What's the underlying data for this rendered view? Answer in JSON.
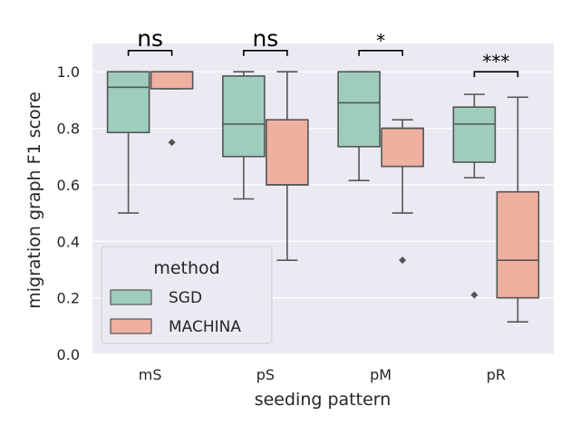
{
  "chart_data": {
    "type": "box",
    "xlabel": "seeding pattern",
    "ylabel": "migration graph F1 score",
    "ylim": [
      0.0,
      1.1
    ],
    "yticks": [
      "0.0",
      "0.2",
      "0.4",
      "0.6",
      "0.8",
      "1.0"
    ],
    "categories": [
      "mS",
      "pS",
      "pM",
      "pR"
    ],
    "grid": true,
    "legend": {
      "title": "method",
      "placement": "lower-left",
      "entries": [
        "SGD",
        "MACHINA"
      ]
    },
    "colors": {
      "SGD": "#9fcdbd",
      "MACHINA": "#efb0a0",
      "edge": "#555555",
      "background": "#eaeaf2"
    },
    "series": [
      {
        "name": "SGD",
        "boxes": [
          {
            "category": "mS",
            "whisker_low": 0.5,
            "q1": 0.785,
            "median": 0.945,
            "q3": 1.0,
            "whisker_high": 1.0,
            "outliers": []
          },
          {
            "category": "pS",
            "whisker_low": 0.55,
            "q1": 0.7,
            "median": 0.815,
            "q3": 0.985,
            "whisker_high": 1.0,
            "outliers": []
          },
          {
            "category": "pM",
            "whisker_low": 0.615,
            "q1": 0.735,
            "median": 0.89,
            "q3": 1.0,
            "whisker_high": 1.0,
            "outliers": []
          },
          {
            "category": "pR",
            "whisker_low": 0.625,
            "q1": 0.68,
            "median": 0.815,
            "q3": 0.875,
            "whisker_high": 0.92,
            "outliers": [
              0.21
            ]
          }
        ]
      },
      {
        "name": "MACHINA",
        "boxes": [
          {
            "category": "mS",
            "whisker_low": 0.94,
            "q1": 0.94,
            "median": 1.0,
            "q3": 1.0,
            "whisker_high": 1.0,
            "outliers": [
              0.75
            ]
          },
          {
            "category": "pS",
            "whisker_low": 0.333,
            "q1": 0.6,
            "median": 0.6,
            "q3": 0.83,
            "whisker_high": 1.0,
            "outliers": []
          },
          {
            "category": "pM",
            "whisker_low": 0.5,
            "q1": 0.665,
            "median": 0.8,
            "q3": 0.8,
            "whisker_high": 0.83,
            "outliers": [
              0.333
            ]
          },
          {
            "category": "pR",
            "whisker_low": 0.115,
            "q1": 0.2,
            "median": 0.333,
            "q3": 0.575,
            "whisker_high": 0.91,
            "outliers": []
          }
        ]
      }
    ],
    "annotations": [
      {
        "category": "mS",
        "text": "ns",
        "y": 1.075
      },
      {
        "category": "pS",
        "text": "ns",
        "y": 1.075
      },
      {
        "category": "pM",
        "text": "*",
        "y": 1.075
      },
      {
        "category": "pR",
        "text": "***",
        "y": 1.0
      }
    ]
  }
}
